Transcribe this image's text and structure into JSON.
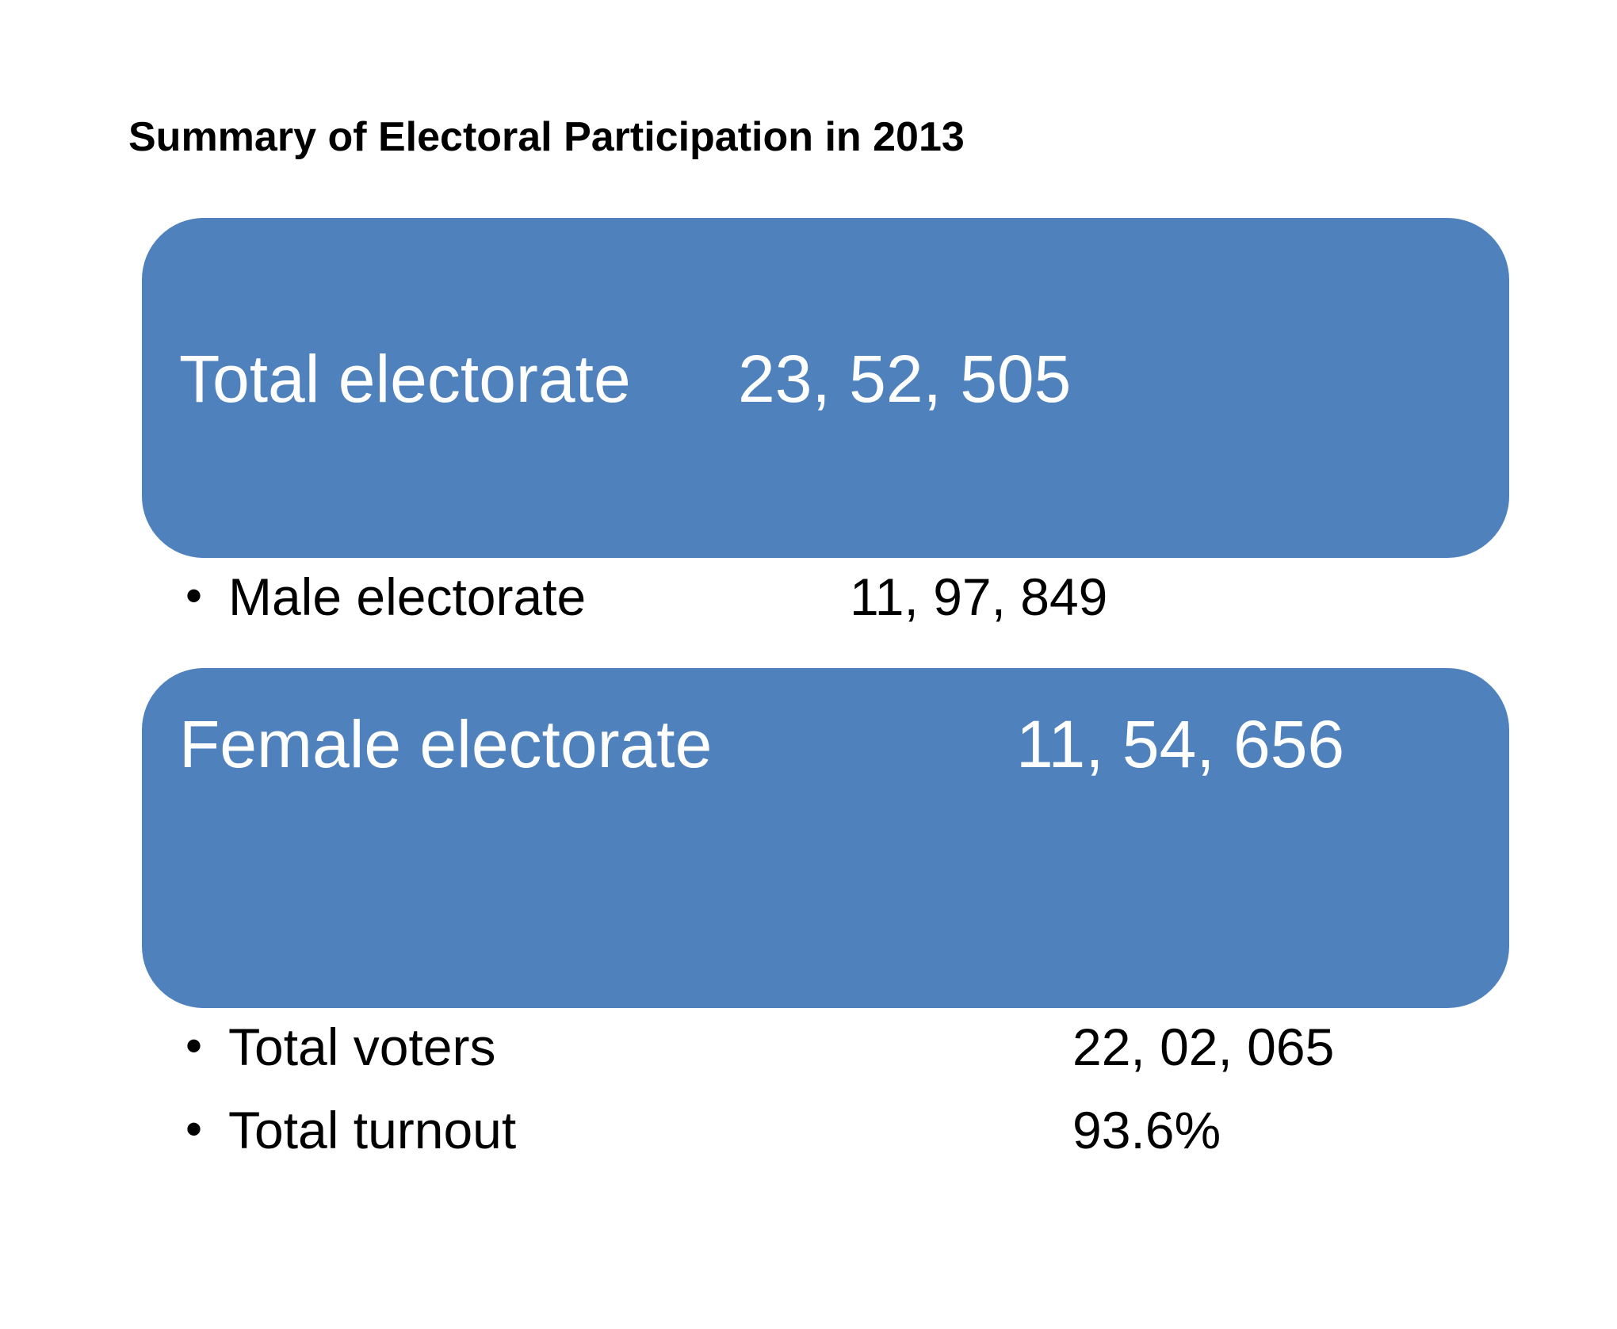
{
  "title": "Summary of Electoral Participation in 2013",
  "accent_color": "#4f81bd",
  "total_electorate": {
    "label": "Total electorate",
    "value": "23, 52, 505"
  },
  "male_electorate": {
    "label": "Male electorate",
    "value": "11, 97, 849"
  },
  "female_electorate": {
    "label": "Female electorate",
    "value": "11, 54, 656"
  },
  "total_voters": {
    "label": "Total voters",
    "value": "22, 02, 065"
  },
  "total_turnout": {
    "label": "Total turnout",
    "value": "93.6%"
  },
  "bullet": "•"
}
